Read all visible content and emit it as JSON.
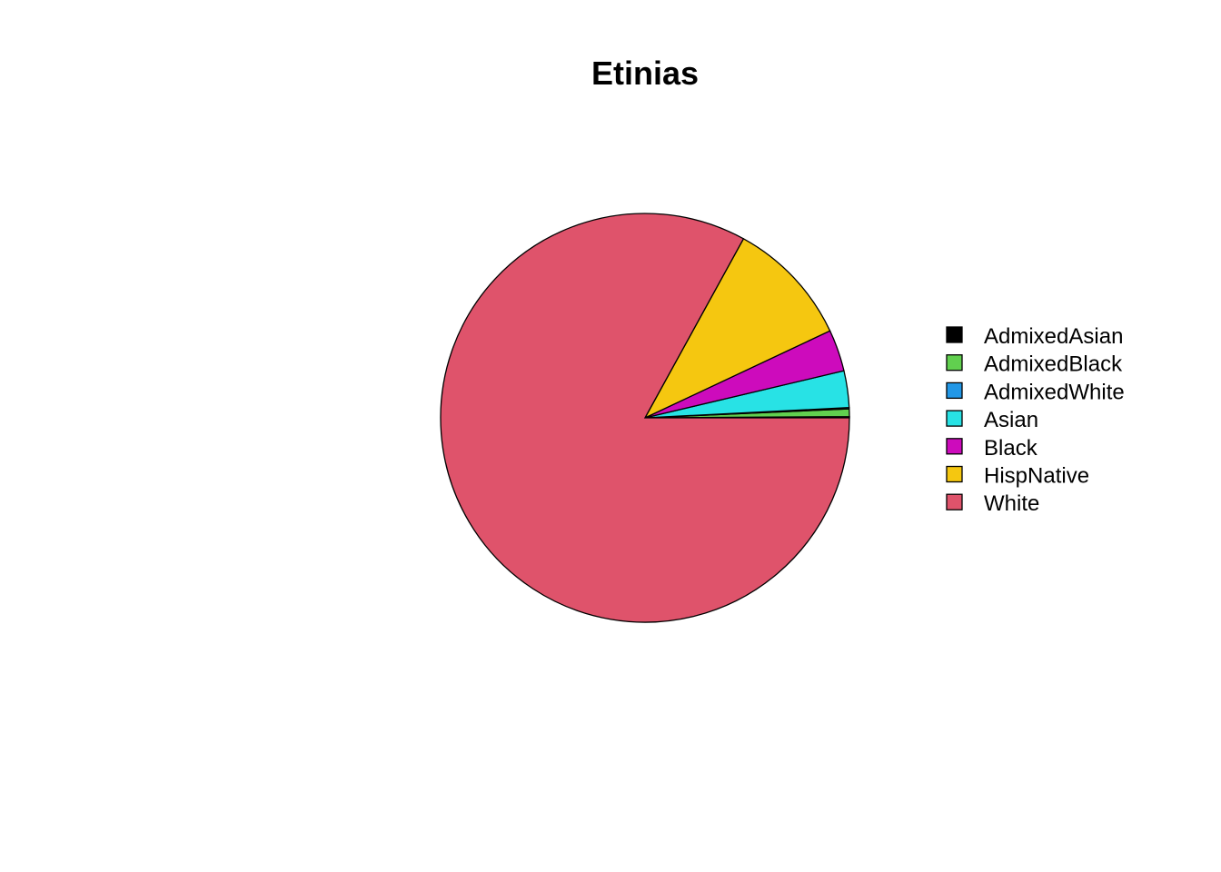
{
  "chart_data": {
    "type": "pie",
    "title": "Etinias",
    "start_angle_deg": 0,
    "direction": "counterclockwise",
    "legend_position": "right",
    "slices": [
      {
        "label": "AdmixedAsian",
        "value": 0.1,
        "color": "#000000"
      },
      {
        "label": "AdmixedBlack",
        "value": 0.6,
        "color": "#61D04F"
      },
      {
        "label": "AdmixedWhite",
        "value": 0.1,
        "color": "#2297E6"
      },
      {
        "label": "Asian",
        "value": 2.9,
        "color": "#28E2E5"
      },
      {
        "label": "Black",
        "value": 3.3,
        "color": "#CD0BBC"
      },
      {
        "label": "HispNative",
        "value": 10.0,
        "color": "#F5C710"
      },
      {
        "label": "White",
        "value": 83.0,
        "color": "#DF536B"
      }
    ]
  }
}
